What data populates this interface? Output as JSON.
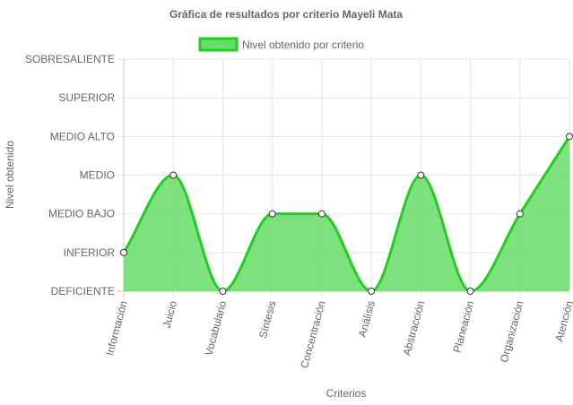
{
  "chart_data": {
    "type": "area",
    "title": "Gráfica de resultados por criterio Mayeli Mata",
    "xlabel": "Criterios",
    "ylabel": "Nivel obtenido",
    "y_levels": [
      "DEFICIENTE",
      "INFERIOR",
      "MEDIO BAJO",
      "MEDIO",
      "MEDIO ALTO",
      "SUPERIOR",
      "SOBRESALIENTE"
    ],
    "categories": [
      "Información",
      "Juicio",
      "Vocabulario",
      "Síntesis",
      "Concentración",
      "Análisis",
      "Abstracción",
      "Planeación",
      "Organización",
      "Atención"
    ],
    "series": [
      {
        "name": "Nivel obtenido por criterio",
        "values": [
          "INFERIOR",
          "MEDIO",
          "DEFICIENTE",
          "MEDIO BAJO",
          "MEDIO BAJO",
          "DEFICIENTE",
          "MEDIO",
          "DEFICIENTE",
          "MEDIO BAJO",
          "MEDIO ALTO"
        ],
        "fill_color": "#66dd66",
        "line_color": "#22cc22"
      }
    ],
    "grid": true,
    "legend_position": "top"
  }
}
